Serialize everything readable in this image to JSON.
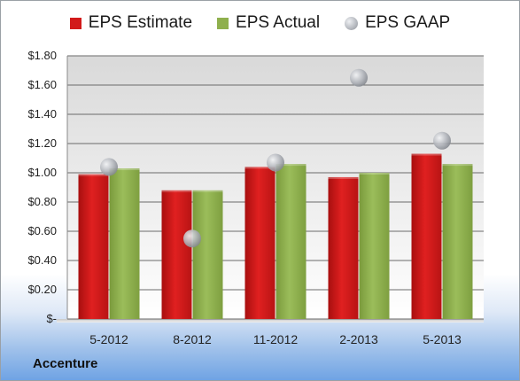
{
  "chart_data": {
    "type": "bar",
    "categories": [
      "5-2012",
      "8-2012",
      "11-2012",
      "2-2013",
      "5-2013"
    ],
    "series": [
      {
        "name": "EPS Estimate",
        "type": "bar",
        "color": "#d21a1a",
        "values": [
          0.99,
          0.88,
          1.04,
          0.97,
          1.13
        ]
      },
      {
        "name": "EPS Actual",
        "type": "bar",
        "color": "#8fb04d",
        "values": [
          1.03,
          0.88,
          1.06,
          1.0,
          1.06
        ]
      },
      {
        "name": "EPS GAAP",
        "type": "scatter",
        "color": "#b0b3b8",
        "values": [
          1.04,
          0.55,
          1.07,
          1.65,
          1.22
        ]
      }
    ],
    "ylim": [
      0,
      1.8
    ],
    "yticks": [
      0,
      0.2,
      0.4,
      0.6,
      0.8,
      1.0,
      1.2,
      1.4,
      1.6,
      1.8
    ],
    "ytick_labels": [
      "$-",
      "$0.20",
      "$0.40",
      "$0.60",
      "$0.80",
      "$1.00",
      "$1.20",
      "$1.40",
      "$1.60",
      "$1.80"
    ],
    "grid": true,
    "legend_position": "top-center"
  },
  "footer": {
    "company": "Accenture"
  }
}
